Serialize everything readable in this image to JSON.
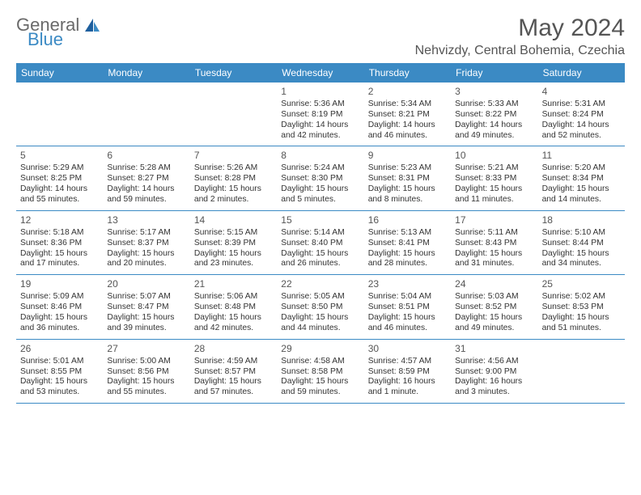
{
  "header": {
    "logo_line1": "General",
    "logo_line2": "Blue",
    "month_title": "May 2024",
    "location": "Nehvizdy, Central Bohemia, Czechia"
  },
  "colors": {
    "header_bg": "#3b8ac4",
    "header_text": "#ffffff",
    "body_text": "#333333",
    "logo_gray": "#6a6a6a",
    "logo_blue": "#3b8ac4"
  },
  "day_names": [
    "Sunday",
    "Monday",
    "Tuesday",
    "Wednesday",
    "Thursday",
    "Friday",
    "Saturday"
  ],
  "first_day_index": 3,
  "days": [
    {
      "n": "1",
      "sunrise": "5:36 AM",
      "sunset": "8:19 PM",
      "day_h": 14,
      "day_m": 42
    },
    {
      "n": "2",
      "sunrise": "5:34 AM",
      "sunset": "8:21 PM",
      "day_h": 14,
      "day_m": 46
    },
    {
      "n": "3",
      "sunrise": "5:33 AM",
      "sunset": "8:22 PM",
      "day_h": 14,
      "day_m": 49
    },
    {
      "n": "4",
      "sunrise": "5:31 AM",
      "sunset": "8:24 PM",
      "day_h": 14,
      "day_m": 52
    },
    {
      "n": "5",
      "sunrise": "5:29 AM",
      "sunset": "8:25 PM",
      "day_h": 14,
      "day_m": 55
    },
    {
      "n": "6",
      "sunrise": "5:28 AM",
      "sunset": "8:27 PM",
      "day_h": 14,
      "day_m": 59
    },
    {
      "n": "7",
      "sunrise": "5:26 AM",
      "sunset": "8:28 PM",
      "day_h": 15,
      "day_m": 2
    },
    {
      "n": "8",
      "sunrise": "5:24 AM",
      "sunset": "8:30 PM",
      "day_h": 15,
      "day_m": 5
    },
    {
      "n": "9",
      "sunrise": "5:23 AM",
      "sunset": "8:31 PM",
      "day_h": 15,
      "day_m": 8
    },
    {
      "n": "10",
      "sunrise": "5:21 AM",
      "sunset": "8:33 PM",
      "day_h": 15,
      "day_m": 11
    },
    {
      "n": "11",
      "sunrise": "5:20 AM",
      "sunset": "8:34 PM",
      "day_h": 15,
      "day_m": 14
    },
    {
      "n": "12",
      "sunrise": "5:18 AM",
      "sunset": "8:36 PM",
      "day_h": 15,
      "day_m": 17
    },
    {
      "n": "13",
      "sunrise": "5:17 AM",
      "sunset": "8:37 PM",
      "day_h": 15,
      "day_m": 20
    },
    {
      "n": "14",
      "sunrise": "5:15 AM",
      "sunset": "8:39 PM",
      "day_h": 15,
      "day_m": 23
    },
    {
      "n": "15",
      "sunrise": "5:14 AM",
      "sunset": "8:40 PM",
      "day_h": 15,
      "day_m": 26
    },
    {
      "n": "16",
      "sunrise": "5:13 AM",
      "sunset": "8:41 PM",
      "day_h": 15,
      "day_m": 28
    },
    {
      "n": "17",
      "sunrise": "5:11 AM",
      "sunset": "8:43 PM",
      "day_h": 15,
      "day_m": 31
    },
    {
      "n": "18",
      "sunrise": "5:10 AM",
      "sunset": "8:44 PM",
      "day_h": 15,
      "day_m": 34
    },
    {
      "n": "19",
      "sunrise": "5:09 AM",
      "sunset": "8:46 PM",
      "day_h": 15,
      "day_m": 36
    },
    {
      "n": "20",
      "sunrise": "5:07 AM",
      "sunset": "8:47 PM",
      "day_h": 15,
      "day_m": 39
    },
    {
      "n": "21",
      "sunrise": "5:06 AM",
      "sunset": "8:48 PM",
      "day_h": 15,
      "day_m": 42
    },
    {
      "n": "22",
      "sunrise": "5:05 AM",
      "sunset": "8:50 PM",
      "day_h": 15,
      "day_m": 44
    },
    {
      "n": "23",
      "sunrise": "5:04 AM",
      "sunset": "8:51 PM",
      "day_h": 15,
      "day_m": 46
    },
    {
      "n": "24",
      "sunrise": "5:03 AM",
      "sunset": "8:52 PM",
      "day_h": 15,
      "day_m": 49
    },
    {
      "n": "25",
      "sunrise": "5:02 AM",
      "sunset": "8:53 PM",
      "day_h": 15,
      "day_m": 51
    },
    {
      "n": "26",
      "sunrise": "5:01 AM",
      "sunset": "8:55 PM",
      "day_h": 15,
      "day_m": 53
    },
    {
      "n": "27",
      "sunrise": "5:00 AM",
      "sunset": "8:56 PM",
      "day_h": 15,
      "day_m": 55
    },
    {
      "n": "28",
      "sunrise": "4:59 AM",
      "sunset": "8:57 PM",
      "day_h": 15,
      "day_m": 57
    },
    {
      "n": "29",
      "sunrise": "4:58 AM",
      "sunset": "8:58 PM",
      "day_h": 15,
      "day_m": 59
    },
    {
      "n": "30",
      "sunrise": "4:57 AM",
      "sunset": "8:59 PM",
      "day_h": 16,
      "day_m": 1
    },
    {
      "n": "31",
      "sunrise": "4:56 AM",
      "sunset": "9:00 PM",
      "day_h": 16,
      "day_m": 3
    }
  ],
  "labels": {
    "sunrise": "Sunrise:",
    "sunset": "Sunset:",
    "daylight": "Daylight:",
    "hours": "hours",
    "and": "and",
    "minute": "minute",
    "minutes": "minutes"
  }
}
